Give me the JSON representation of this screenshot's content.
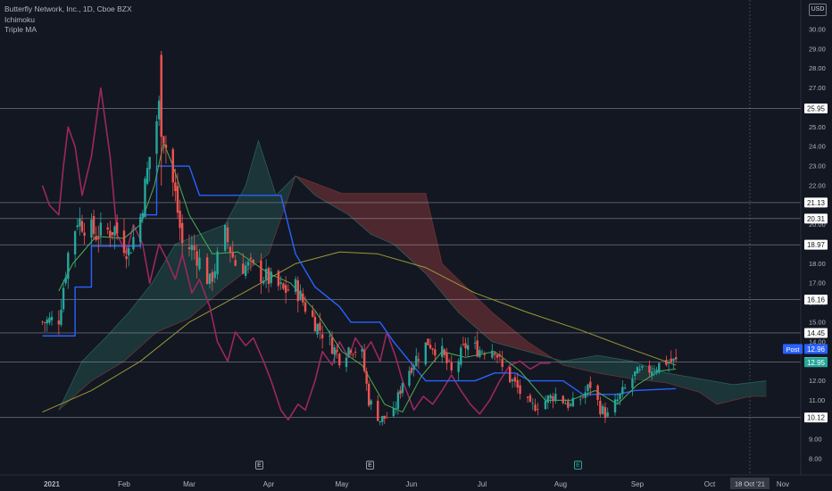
{
  "legend": {
    "title": "Butterfly Network, Inc., 1D, Cboe BZX",
    "indicators": [
      "Ichimoku",
      "Triple MA"
    ]
  },
  "currency": "USD",
  "post_label": "Post",
  "events": [
    {
      "label": "E",
      "date": "Mar 29",
      "color": "grey"
    },
    {
      "label": "E",
      "date": "May 13",
      "color": "grey"
    },
    {
      "label": "E",
      "date": "Aug 12",
      "color": "green"
    }
  ],
  "colors": {
    "background": "#131722",
    "up": "#26a69a",
    "down": "#ef5350",
    "tenkan": "#4caf50",
    "kijun": "#2962ff",
    "lagging": "#9c2760",
    "ma_slow": "#9a9a36",
    "cloud_bear": "#5b2a30",
    "cloud_bull": "#1d3b3d"
  },
  "chart_data": {
    "type": "candlestick",
    "y_axis": {
      "min": 8.0,
      "max": 30.0,
      "ticks": [
        "30.00",
        "29.00",
        "28.00",
        "27.00",
        "26.00",
        "25.00",
        "24.00",
        "23.00",
        "22.00",
        "21.00",
        "20.00",
        "19.00",
        "18.00",
        "17.00",
        "16.00",
        "15.00",
        "14.00",
        "13.00",
        "12.00",
        "11.00",
        "10.00",
        "9.00",
        "8.00"
      ]
    },
    "x_axis": {
      "labels": [
        {
          "label": "2021",
          "bold": true
        },
        {
          "label": "Feb"
        },
        {
          "label": "Mar"
        },
        {
          "label": "Apr"
        },
        {
          "label": "May"
        },
        {
          "label": "Jun"
        },
        {
          "label": "Jul"
        },
        {
          "label": "Aug"
        },
        {
          "label": "Sep"
        },
        {
          "label": "Oct"
        },
        {
          "label": "Nov"
        }
      ],
      "crosshair_label": "18 Oct '21"
    },
    "horizontal_levels": [
      25.95,
      21.13,
      20.31,
      18.97,
      16.16,
      14.45,
      12.96,
      10.12
    ],
    "price_labels": [
      {
        "value": "25.95",
        "y": 25.95,
        "style": "level"
      },
      {
        "value": "21.13",
        "y": 21.13,
        "style": "level"
      },
      {
        "value": "20.31",
        "y": 20.31,
        "style": "level"
      },
      {
        "value": "18.97",
        "y": 18.97,
        "style": "level"
      },
      {
        "value": "16.16",
        "y": 16.16,
        "style": "level"
      },
      {
        "value": "14.45",
        "y": 14.45,
        "style": "level"
      },
      {
        "value": "12.96",
        "y": 13.63,
        "style": "post"
      },
      {
        "value": "12.96",
        "y": 12.96,
        "style": "level"
      },
      {
        "value": "12.95",
        "y": 12.95,
        "style": "last"
      },
      {
        "value": "10.12",
        "y": 10.12,
        "style": "level"
      }
    ],
    "candle_anchors": [
      {
        "date": "Dec 28",
        "price": 15.0
      },
      {
        "date": "Jan 4",
        "price": 15.2
      },
      {
        "date": "Jan 8",
        "price": 18.5
      },
      {
        "date": "Jan 12",
        "price": 20.3
      },
      {
        "date": "Jan 20",
        "price": 19.5
      },
      {
        "date": "Jan 28",
        "price": 19.8
      },
      {
        "date": "Feb 3",
        "price": 18.6
      },
      {
        "date": "Feb 8",
        "price": 20.4
      },
      {
        "date": "Feb 12",
        "price": 23.5
      },
      {
        "date": "Feb 16",
        "price": 26.0
      },
      {
        "date": "Feb 19",
        "price": 24.0
      },
      {
        "date": "Feb 23",
        "price": 21.5
      },
      {
        "date": "Feb 26",
        "price": 19.0
      },
      {
        "date": "Mar 3",
        "price": 18.7
      },
      {
        "date": "Mar 9",
        "price": 17.0
      },
      {
        "date": "Mar 15",
        "price": 19.5
      },
      {
        "date": "Mar 19",
        "price": 18.0
      },
      {
        "date": "Mar 25",
        "price": 17.8
      },
      {
        "date": "Apr 1",
        "price": 17.2
      },
      {
        "date": "Apr 7",
        "price": 16.6
      },
      {
        "date": "Apr 12",
        "price": 16.8
      },
      {
        "date": "Apr 16",
        "price": 15.8
      },
      {
        "date": "Apr 21",
        "price": 14.8
      },
      {
        "date": "Apr 26",
        "price": 14.0
      },
      {
        "date": "Apr 30",
        "price": 13.2
      },
      {
        "date": "May 5",
        "price": 13.8
      },
      {
        "date": "May 10",
        "price": 13.3
      },
      {
        "date": "May 13",
        "price": 11.0
      },
      {
        "date": "May 18",
        "price": 10.0
      },
      {
        "date": "May 24",
        "price": 10.3
      },
      {
        "date": "May 28",
        "price": 12.0
      },
      {
        "date": "Jun 2",
        "price": 13.0
      },
      {
        "date": "Jun 8",
        "price": 14.0
      },
      {
        "date": "Jun 14",
        "price": 13.4
      },
      {
        "date": "Jun 18",
        "price": 12.4
      },
      {
        "date": "Jun 24",
        "price": 13.8
      },
      {
        "date": "Jun 30",
        "price": 13.6
      },
      {
        "date": "Jul 6",
        "price": 13.7
      },
      {
        "date": "Jul 9",
        "price": 12.6
      },
      {
        "date": "Jul 14",
        "price": 11.8
      },
      {
        "date": "Jul 20",
        "price": 10.6
      },
      {
        "date": "Jul 26",
        "price": 11.0
      },
      {
        "date": "Jul 30",
        "price": 11.3
      },
      {
        "date": "Aug 5",
        "price": 10.7
      },
      {
        "date": "Aug 10",
        "price": 11.2
      },
      {
        "date": "Aug 13",
        "price": 11.8
      },
      {
        "date": "Aug 17",
        "price": 10.6
      },
      {
        "date": "Aug 20",
        "price": 10.2
      },
      {
        "date": "Aug 25",
        "price": 11.2
      },
      {
        "date": "Aug 31",
        "price": 12.3
      },
      {
        "date": "Sep 3",
        "price": 12.4
      },
      {
        "date": "Sep 8",
        "price": 12.7
      },
      {
        "date": "Sep 13",
        "price": 13.0
      },
      {
        "date": "Sep 17",
        "price": 12.95
      }
    ],
    "tenkan_sen": [
      {
        "date": "Jan 4",
        "price": 16.6
      },
      {
        "date": "Jan 10",
        "price": 18.0
      },
      {
        "date": "Jan 20",
        "price": 19.4
      },
      {
        "date": "Feb 1",
        "price": 19.3
      },
      {
        "date": "Feb 8",
        "price": 20.0
      },
      {
        "date": "Feb 14",
        "price": 22.0
      },
      {
        "date": "Feb 18",
        "price": 24.2
      },
      {
        "date": "Feb 22",
        "price": 23.0
      },
      {
        "date": "Mar 1",
        "price": 20.5
      },
      {
        "date": "Mar 10",
        "price": 18.5
      },
      {
        "date": "Mar 20",
        "price": 18.6
      },
      {
        "date": "Apr 1",
        "price": 17.5
      },
      {
        "date": "Apr 10",
        "price": 17.0
      },
      {
        "date": "Apr 20",
        "price": 15.6
      },
      {
        "date": "May 1",
        "price": 13.5
      },
      {
        "date": "May 10",
        "price": 12.8
      },
      {
        "date": "May 20",
        "price": 10.8
      },
      {
        "date": "May 28",
        "price": 10.4
      },
      {
        "date": "Jun 5",
        "price": 12.2
      },
      {
        "date": "Jun 14",
        "price": 13.5
      },
      {
        "date": "Jun 24",
        "price": 13.2
      },
      {
        "date": "Jul 6",
        "price": 13.5
      },
      {
        "date": "Jul 16",
        "price": 12.5
      },
      {
        "date": "Jul 26",
        "price": 11.0
      },
      {
        "date": "Aug 5",
        "price": 11.0
      },
      {
        "date": "Aug 15",
        "price": 11.5
      },
      {
        "date": "Aug 24",
        "price": 10.8
      },
      {
        "date": "Sep 1",
        "price": 11.8
      },
      {
        "date": "Sep 10",
        "price": 12.5
      },
      {
        "date": "Sep 17",
        "price": 12.6
      }
    ],
    "kijun_sen": [
      {
        "date": "Dec 28",
        "price": 14.3
      },
      {
        "date": "Jan 11",
        "price": 14.3
      },
      {
        "date": "Jan 11",
        "price": 16.8
      },
      {
        "date": "Jan 18",
        "price": 16.8
      },
      {
        "date": "Jan 18",
        "price": 18.9
      },
      {
        "date": "Feb 8",
        "price": 18.9
      },
      {
        "date": "Feb 8",
        "price": 20.5
      },
      {
        "date": "Feb 15",
        "price": 20.5
      },
      {
        "date": "Feb 15",
        "price": 23.0
      },
      {
        "date": "Mar 1",
        "price": 23.0
      },
      {
        "date": "Mar 5",
        "price": 21.5
      },
      {
        "date": "Apr 6",
        "price": 21.5
      },
      {
        "date": "Apr 12",
        "price": 18.5
      },
      {
        "date": "Apr 20",
        "price": 16.8
      },
      {
        "date": "Apr 30",
        "price": 15.8
      },
      {
        "date": "May 5",
        "price": 15.0
      },
      {
        "date": "May 18",
        "price": 15.0
      },
      {
        "date": "May 24",
        "price": 14.0
      },
      {
        "date": "Jun 7",
        "price": 12.0
      },
      {
        "date": "Jun 28",
        "price": 12.0
      },
      {
        "date": "Jul 6",
        "price": 12.4
      },
      {
        "date": "Jul 14",
        "price": 12.4
      },
      {
        "date": "Jul 20",
        "price": 12.0
      },
      {
        "date": "Aug 2",
        "price": 12.0
      },
      {
        "date": "Aug 10",
        "price": 11.3
      },
      {
        "date": "Aug 24",
        "price": 11.3
      },
      {
        "date": "Aug 31",
        "price": 11.5
      },
      {
        "date": "Sep 17",
        "price": 11.6
      }
    ],
    "chikou_span": [
      {
        "date": "Dec 28",
        "price": 22.0
      },
      {
        "date": "Dec 31",
        "price": 21.0
      },
      {
        "date": "Jan 4",
        "price": 20.5
      },
      {
        "date": "Jan 6",
        "price": 23.0
      },
      {
        "date": "Jan 8",
        "price": 25.0
      },
      {
        "date": "Jan 11",
        "price": 24.0
      },
      {
        "date": "Jan 14",
        "price": 21.5
      },
      {
        "date": "Jan 18",
        "price": 23.5
      },
      {
        "date": "Jan 22",
        "price": 27.0
      },
      {
        "date": "Jan 26",
        "price": 23.5
      },
      {
        "date": "Jan 29",
        "price": 19.5
      },
      {
        "date": "Feb 2",
        "price": 18.5
      },
      {
        "date": "Feb 5",
        "price": 20.0
      },
      {
        "date": "Feb 9",
        "price": 19.0
      },
      {
        "date": "Feb 12",
        "price": 17.0
      },
      {
        "date": "Feb 16",
        "price": 19.0
      },
      {
        "date": "Feb 19",
        "price": 18.3
      },
      {
        "date": "Feb 23",
        "price": 17.2
      },
      {
        "date": "Feb 26",
        "price": 18.5
      },
      {
        "date": "Mar 2",
        "price": 16.5
      },
      {
        "date": "Mar 5",
        "price": 17.2
      },
      {
        "date": "Mar 9",
        "price": 15.8
      },
      {
        "date": "Mar 12",
        "price": 14.0
      },
      {
        "date": "Mar 16",
        "price": 13.0
      },
      {
        "date": "Mar 19",
        "price": 14.5
      },
      {
        "date": "Mar 23",
        "price": 13.8
      },
      {
        "date": "Mar 26",
        "price": 14.2
      },
      {
        "date": "Mar 30",
        "price": 13.0
      },
      {
        "date": "Apr 2",
        "price": 12.0
      },
      {
        "date": "Apr 6",
        "price": 10.5
      },
      {
        "date": "Apr 9",
        "price": 10.0
      },
      {
        "date": "Apr 13",
        "price": 10.8
      },
      {
        "date": "Apr 16",
        "price": 10.5
      },
      {
        "date": "Apr 20",
        "price": 12.0
      },
      {
        "date": "Apr 23",
        "price": 13.5
      },
      {
        "date": "Apr 27",
        "price": 12.8
      },
      {
        "date": "Apr 30",
        "price": 14.0
      },
      {
        "date": "May 4",
        "price": 13.2
      },
      {
        "date": "May 7",
        "price": 14.2
      },
      {
        "date": "May 11",
        "price": 13.5
      },
      {
        "date": "May 14",
        "price": 14.0
      },
      {
        "date": "May 18",
        "price": 13.0
      },
      {
        "date": "May 21",
        "price": 14.5
      },
      {
        "date": "May 25",
        "price": 13.2
      },
      {
        "date": "May 28",
        "price": 12.0
      },
      {
        "date": "Jun 2",
        "price": 10.5
      },
      {
        "date": "Jun 6",
        "price": 11.2
      },
      {
        "date": "Jun 10",
        "price": 10.8
      },
      {
        "date": "Jun 14",
        "price": 11.5
      },
      {
        "date": "Jun 18",
        "price": 12.3
      },
      {
        "date": "Jun 22",
        "price": 11.5
      },
      {
        "date": "Jun 26",
        "price": 10.8
      },
      {
        "date": "Jun 30",
        "price": 10.3
      },
      {
        "date": "Jul 4",
        "price": 11.0
      },
      {
        "date": "Jul 8",
        "price": 12.0
      },
      {
        "date": "Jul 12",
        "price": 12.8
      },
      {
        "date": "Jul 16",
        "price": 13.0
      },
      {
        "date": "Jul 20",
        "price": 12.6
      },
      {
        "date": "Jul 24",
        "price": 12.9
      },
      {
        "date": "Jul 28",
        "price": 12.9
      }
    ],
    "senkou_a": [
      {
        "date": "Jan 4",
        "price": 10.5
      },
      {
        "date": "Jan 14",
        "price": 13.0
      },
      {
        "date": "Jan 24",
        "price": 14.2
      },
      {
        "date": "Feb 3",
        "price": 15.5
      },
      {
        "date": "Feb 13",
        "price": 17.0
      },
      {
        "date": "Feb 23",
        "price": 19.0
      },
      {
        "date": "Mar 5",
        "price": 19.5
      },
      {
        "date": "Mar 15",
        "price": 20.0
      },
      {
        "date": "Mar 23",
        "price": 22.0
      },
      {
        "date": "Mar 28",
        "price": 24.3
      },
      {
        "date": "Apr 4",
        "price": 21.5
      },
      {
        "date": "Apr 12",
        "price": 22.5
      },
      {
        "date": "Apr 20",
        "price": 21.5
      },
      {
        "date": "May 4",
        "price": 20.5
      },
      {
        "date": "May 14",
        "price": 19.5
      },
      {
        "date": "May 24",
        "price": 19.0
      },
      {
        "date": "Jun 7",
        "price": 17.5
      },
      {
        "date": "Jun 21",
        "price": 15.5
      },
      {
        "date": "Jul 5",
        "price": 14.0
      },
      {
        "date": "Jul 19",
        "price": 13.5
      },
      {
        "date": "Aug 2",
        "price": 13.0
      },
      {
        "date": "Aug 16",
        "price": 13.3
      },
      {
        "date": "Aug 30",
        "price": 13.0
      },
      {
        "date": "Sep 13",
        "price": 12.4
      },
      {
        "date": "Sep 27",
        "price": 12.1
      },
      {
        "date": "Oct 11",
        "price": 11.8
      },
      {
        "date": "Oct 25",
        "price": 12.0
      }
    ],
    "senkou_b": [
      {
        "date": "Jan 4",
        "price": 10.5
      },
      {
        "date": "Jan 18",
        "price": 12.0
      },
      {
        "date": "Feb 1",
        "price": 13.0
      },
      {
        "date": "Feb 15",
        "price": 14.5
      },
      {
        "date": "Mar 1",
        "price": 15.2
      },
      {
        "date": "Mar 15",
        "price": 16.8
      },
      {
        "date": "Apr 1",
        "price": 18.5
      },
      {
        "date": "Apr 12",
        "price": 22.5
      },
      {
        "date": "May 1",
        "price": 21.6
      },
      {
        "date": "May 14",
        "price": 21.6
      },
      {
        "date": "Jun 7",
        "price": 21.6
      },
      {
        "date": "Jun 14",
        "price": 18.0
      },
      {
        "date": "Jul 5",
        "price": 15.5
      },
      {
        "date": "Jul 19",
        "price": 14.0
      },
      {
        "date": "Aug 2",
        "price": 12.8
      },
      {
        "date": "Aug 16",
        "price": 12.4
      },
      {
        "date": "Aug 30",
        "price": 12.1
      },
      {
        "date": "Sep 13",
        "price": 11.9
      },
      {
        "date": "Sep 27",
        "price": 11.4
      },
      {
        "date": "Oct 4",
        "price": 10.8
      },
      {
        "date": "Oct 18",
        "price": 11.2
      },
      {
        "date": "Oct 25",
        "price": 11.2
      }
    ],
    "ma_slow": [
      {
        "date": "Dec 28",
        "price": 10.4
      },
      {
        "date": "Jan 18",
        "price": 11.5
      },
      {
        "date": "Feb 8",
        "price": 13.0
      },
      {
        "date": "Mar 1",
        "price": 15.0
      },
      {
        "date": "Mar 22",
        "price": 16.5
      },
      {
        "date": "Apr 12",
        "price": 18.0
      },
      {
        "date": "Apr 30",
        "price": 18.6
      },
      {
        "date": "May 17",
        "price": 18.5
      },
      {
        "date": "Jun 7",
        "price": 17.8
      },
      {
        "date": "Jun 28",
        "price": 16.5
      },
      {
        "date": "Jul 19",
        "price": 15.5
      },
      {
        "date": "Aug 9",
        "price": 14.6
      },
      {
        "date": "Aug 30",
        "price": 13.6
      },
      {
        "date": "Sep 17",
        "price": 12.8
      }
    ]
  }
}
